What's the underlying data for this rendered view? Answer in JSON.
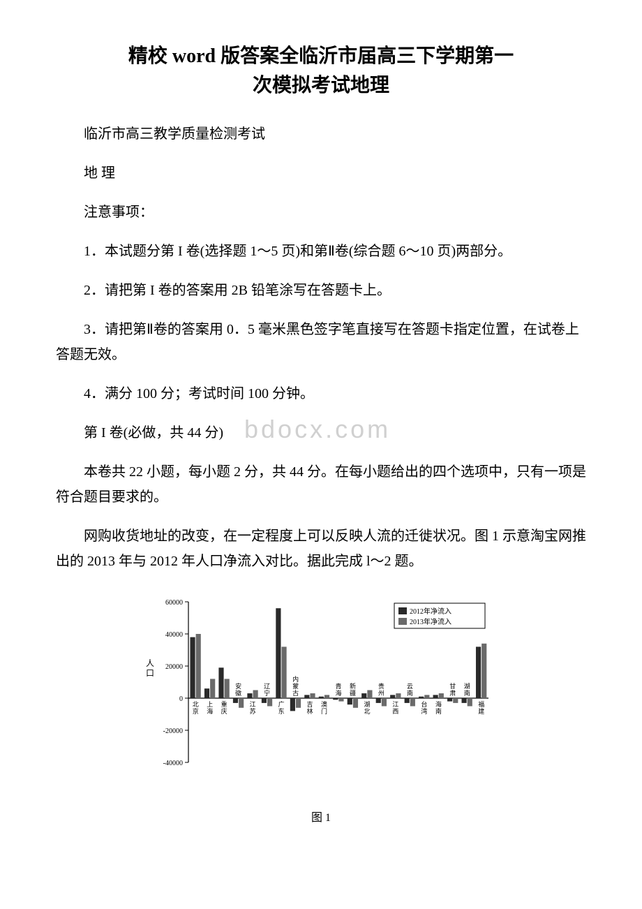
{
  "title_line1": "精校 word 版答案全临沂市届高三下学期第一",
  "title_line2": "次模拟考试地理",
  "subtitle": "临沂市高三教学质量检测考试",
  "subject": "地 理",
  "notice_heading": "注意事项：",
  "notice_1": "1．本试题分第 I 卷(选择题 1～5 页)和第Ⅱ卷(综合题 6～10 页)两部分。",
  "notice_2": "2．请把第 I 卷的答案用 2B 铅笔涂写在答题卡上。",
  "notice_3": "3．请把第Ⅱ卷的答案用 0．5 毫米黑色签字笔直接写在答题卡指定位置，在试卷上答题无效。",
  "notice_4": "4．满分 100 分；考试时间 100 分钟。",
  "part1_heading": "第 I 卷(必做，共 44 分)",
  "part1_desc": "本卷共 22 小题，每小题 2 分，共 44 分。在每小题给出的四个选项中，只有一项是符合题目要求的。",
  "q1_intro": "网购收货地址的改变，在一定程度上可以反映人流的迁徙状况。图 1 示意淘宝网推出的 2013 年与 2012 年人口净流入对比。据此完成 l～2 题。",
  "watermark_text": "bdocx.com",
  "chart": {
    "type": "bar",
    "caption": "图 1",
    "ylabel": "人口",
    "ylim": [
      -40000,
      60000
    ],
    "ytick_step": 20000,
    "yticks": [
      -40000,
      -20000,
      0,
      20000,
      40000,
      60000
    ],
    "legend": [
      "2012年净流入",
      "2013年净流入"
    ],
    "legend_colors": [
      "#2a2a2a",
      "#6a6a6a"
    ],
    "bar_colors": [
      "#2a2a2a",
      "#6a6a6a"
    ],
    "background_color": "#ffffff",
    "axis_color": "#000000",
    "text_color": "#000000",
    "label_fontsize": 9,
    "axis_fontsize": 10,
    "bar_width": 0.35,
    "categories": [
      "北京",
      "上海",
      "重庆",
      "安徽",
      "江苏",
      "辽宁",
      "广东",
      "内蒙古",
      "吉林",
      "澳门",
      "青海",
      "新疆",
      "湖北",
      "贵州",
      "江西",
      "云南",
      "台湾",
      "海南",
      "甘肃",
      "湖南",
      "福建"
    ],
    "values_2012": [
      38000,
      6000,
      19000,
      -3000,
      3000,
      -3000,
      56000,
      -8000,
      2000,
      1000,
      -1000,
      -4000,
      3000,
      -3000,
      2000,
      -3000,
      1000,
      2000,
      -2000,
      -3000,
      32000
    ],
    "values_2013": [
      40000,
      12000,
      12000,
      -6000,
      5000,
      -5000,
      32000,
      -6000,
      3000,
      2000,
      -2000,
      -6000,
      5000,
      -5000,
      3000,
      -5000,
      2000,
      3000,
      -3000,
      -5000,
      34000
    ]
  }
}
